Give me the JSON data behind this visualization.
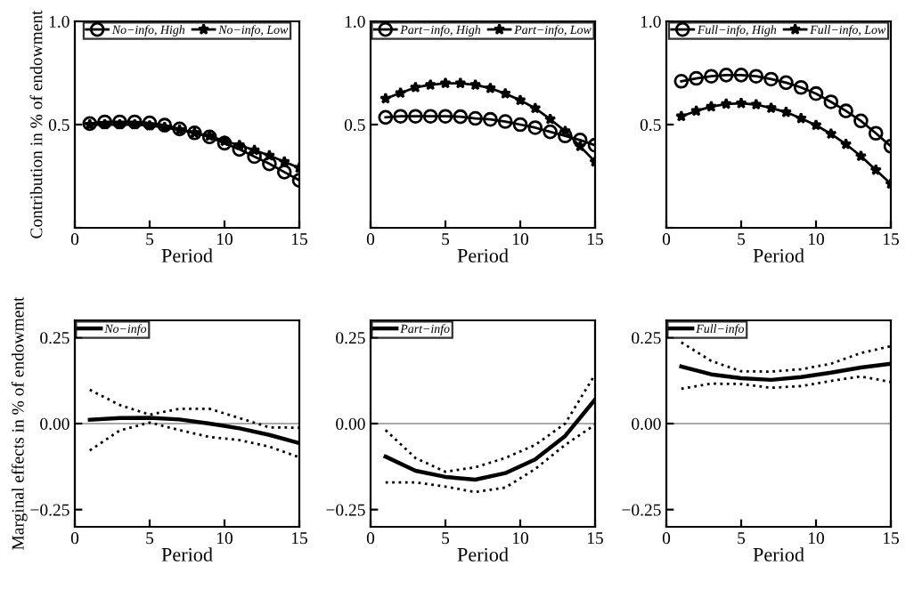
{
  "chart_data": [
    {
      "type": "line",
      "xlabel": "Period",
      "ylabel": "Contribution in % of endowment",
      "x": [
        1,
        2,
        3,
        4,
        5,
        6,
        7,
        8,
        9,
        10,
        11,
        12,
        13,
        14,
        15
      ],
      "xlim": [
        0,
        15
      ],
      "xticks": [
        0,
        5,
        10,
        15
      ],
      "ylim": [
        0,
        1
      ],
      "yticks": [
        {
          "value": 0,
          "label": null
        },
        {
          "value": 0.5,
          "label": "0.5"
        },
        {
          "value": 1,
          "label": "1.0"
        }
      ],
      "legend": "top",
      "grid": false,
      "line_style": "solid",
      "series": [
        {
          "name": "No−info, High",
          "color": "#000000",
          "marker": "circle",
          "values": [
            0.505,
            0.513,
            0.513,
            0.513,
            0.508,
            0.497,
            0.479,
            0.46,
            0.44,
            0.41,
            0.38,
            0.345,
            0.31,
            0.27,
            0.23
          ]
        },
        {
          "name": "No−info, Low",
          "color": "#000000",
          "marker": "star",
          "values": [
            0.5,
            0.5,
            0.5,
            0.5,
            0.495,
            0.487,
            0.474,
            0.46,
            0.445,
            0.42,
            0.4,
            0.376,
            0.35,
            0.32,
            0.29
          ]
        }
      ]
    },
    {
      "type": "line",
      "xlabel": "Period",
      "x": [
        1,
        2,
        3,
        4,
        5,
        6,
        7,
        8,
        9,
        10,
        11,
        12,
        13,
        14,
        15
      ],
      "xlim": [
        0,
        15
      ],
      "xticks": [
        0,
        5,
        10,
        15
      ],
      "ylim": [
        0,
        1
      ],
      "yticks": [
        {
          "value": 0,
          "label": null
        },
        {
          "value": 0.5,
          "label": "0.5"
        },
        {
          "value": 1,
          "label": "1.0"
        }
      ],
      "legend": "top",
      "grid": false,
      "line_style": "solid",
      "series": [
        {
          "name": "Part−info, High",
          "color": "#000000",
          "marker": "circle",
          "values": [
            0.535,
            0.54,
            0.54,
            0.54,
            0.54,
            0.538,
            0.53,
            0.525,
            0.515,
            0.5,
            0.485,
            0.465,
            0.445,
            0.425,
            0.4
          ]
        },
        {
          "name": "Part−info, Low",
          "color": "#000000",
          "marker": "star",
          "values": [
            0.626,
            0.653,
            0.68,
            0.692,
            0.7,
            0.7,
            0.692,
            0.676,
            0.65,
            0.618,
            0.579,
            0.526,
            0.468,
            0.395,
            0.32
          ]
        }
      ]
    },
    {
      "type": "line",
      "xlabel": "Period",
      "x": [
        1,
        2,
        3,
        4,
        5,
        6,
        7,
        8,
        9,
        10,
        11,
        12,
        13,
        14,
        15
      ],
      "xlim": [
        0,
        15
      ],
      "xticks": [
        0,
        5,
        10,
        15
      ],
      "ylim": [
        0,
        1
      ],
      "yticks": [
        {
          "value": 0,
          "label": null
        },
        {
          "value": 0.5,
          "label": "0.5"
        },
        {
          "value": 1,
          "label": "1.0"
        }
      ],
      "legend": "top",
      "grid": false,
      "line_style": "solid",
      "series": [
        {
          "name": "Full−info, High",
          "color": "#000000",
          "marker": "circle",
          "values": [
            0.71,
            0.724,
            0.734,
            0.74,
            0.74,
            0.734,
            0.72,
            0.703,
            0.68,
            0.65,
            0.61,
            0.566,
            0.518,
            0.458,
            0.395
          ]
        },
        {
          "name": "Full−info, Low",
          "color": "#000000",
          "marker": "star",
          "values": [
            0.54,
            0.566,
            0.587,
            0.6,
            0.603,
            0.597,
            0.58,
            0.56,
            0.53,
            0.497,
            0.455,
            0.405,
            0.347,
            0.28,
            0.213
          ]
        }
      ]
    },
    {
      "type": "line",
      "xlabel": "Period",
      "ylabel": "Marginal effects in % of endowment",
      "x": [
        1,
        3,
        5,
        7,
        9,
        11,
        13,
        15
      ],
      "xlim": [
        0,
        15
      ],
      "xticks": [
        0,
        5,
        10,
        15
      ],
      "ylim": [
        -0.3,
        0.3
      ],
      "yticks": [
        {
          "value": -0.25,
          "label": "−0.25"
        },
        {
          "value": 0,
          "label": "0.00"
        },
        {
          "value": 0.25,
          "label": "0.25"
        }
      ],
      "legend": "top left",
      "grid": false,
      "marker": "none",
      "ref_lines": [
        {
          "axis": "y",
          "value": 0,
          "color": "#aaaaaa"
        }
      ],
      "series": [
        {
          "name": "No−info",
          "color": "#000000",
          "line_style": "solid",
          "values": [
            0.011,
            0.016,
            0.017,
            0.012,
            0.0,
            -0.014,
            -0.033,
            -0.057
          ]
        },
        {
          "color": "#000000",
          "line_style": "dotted",
          "values": [
            0.098,
            0.054,
            0.026,
            0.043,
            0.043,
            0.016,
            -0.011,
            -0.012
          ]
        },
        {
          "color": "#000000",
          "line_style": "dotted",
          "values": [
            -0.078,
            -0.02,
            0.003,
            -0.019,
            -0.039,
            -0.048,
            -0.067,
            -0.098
          ]
        }
      ]
    },
    {
      "type": "line",
      "xlabel": "Period",
      "x": [
        1,
        3,
        5,
        7,
        9,
        11,
        13,
        15
      ],
      "xlim": [
        0,
        15
      ],
      "xticks": [
        0,
        5,
        10,
        15
      ],
      "ylim": [
        -0.3,
        0.3
      ],
      "yticks": [
        {
          "value": -0.25,
          "label": "−0.25"
        },
        {
          "value": 0,
          "label": "0.00"
        },
        {
          "value": 0.25,
          "label": "0.25"
        }
      ],
      "legend": "top left",
      "grid": false,
      "marker": "none",
      "ref_lines": [
        {
          "axis": "y",
          "value": 0,
          "color": "#aaaaaa"
        }
      ],
      "series": [
        {
          "name": "Part−info",
          "color": "#000000",
          "line_style": "solid",
          "values": [
            -0.096,
            -0.137,
            -0.155,
            -0.163,
            -0.144,
            -0.104,
            -0.036,
            0.07
          ]
        },
        {
          "color": "#000000",
          "line_style": "dotted",
          "values": [
            -0.019,
            -0.1,
            -0.14,
            -0.127,
            -0.1,
            -0.062,
            0.0,
            0.143
          ]
        },
        {
          "color": "#000000",
          "line_style": "dotted",
          "values": [
            -0.171,
            -0.171,
            -0.183,
            -0.199,
            -0.186,
            -0.132,
            -0.062,
            -0.003
          ]
        }
      ]
    },
    {
      "type": "line",
      "xlabel": "Period",
      "x": [
        1,
        3,
        5,
        7,
        9,
        11,
        13,
        15
      ],
      "xlim": [
        0,
        15
      ],
      "xticks": [
        0,
        5,
        10,
        15
      ],
      "ylim": [
        -0.3,
        0.3
      ],
      "yticks": [
        {
          "value": -0.25,
          "label": "−0.25"
        },
        {
          "value": 0,
          "label": "0.00"
        },
        {
          "value": 0.25,
          "label": "0.25"
        }
      ],
      "legend": "top left",
      "grid": false,
      "marker": "none",
      "ref_lines": [
        {
          "axis": "y",
          "value": 0,
          "color": "#aaaaaa"
        }
      ],
      "series": [
        {
          "name": "Full−info",
          "color": "#000000",
          "line_style": "solid",
          "values": [
            0.166,
            0.143,
            0.132,
            0.127,
            0.135,
            0.148,
            0.163,
            0.174
          ]
        },
        {
          "color": "#000000",
          "line_style": "dotted",
          "values": [
            0.236,
            0.182,
            0.152,
            0.151,
            0.158,
            0.174,
            0.205,
            0.225
          ]
        },
        {
          "color": "#000000",
          "line_style": "dotted",
          "values": [
            0.101,
            0.116,
            0.115,
            0.104,
            0.109,
            0.124,
            0.137,
            0.121
          ]
        }
      ]
    }
  ]
}
